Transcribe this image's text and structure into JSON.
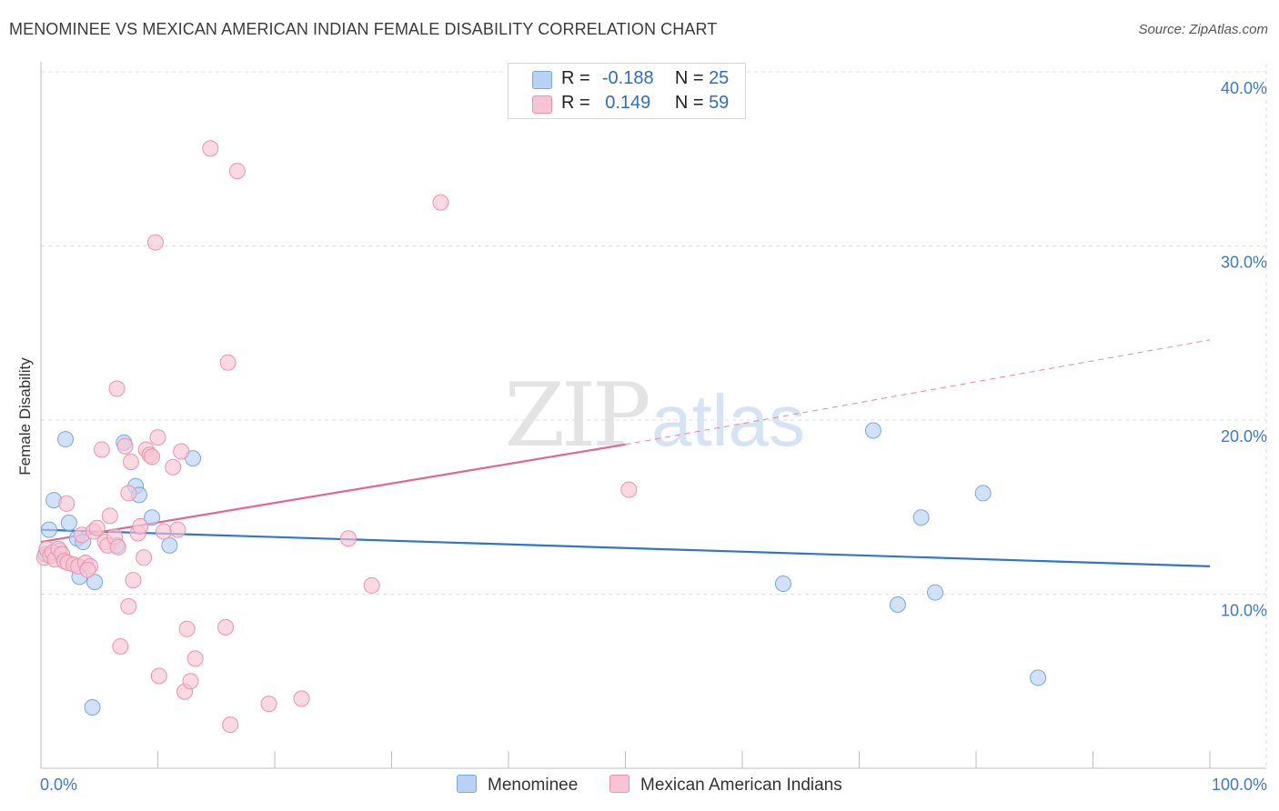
{
  "title": "MENOMINEE VS MEXICAN AMERICAN INDIAN FEMALE DISABILITY CORRELATION CHART",
  "source": "Source: ZipAtlas.com",
  "watermark": {
    "zip": "ZIP",
    "atlas": "atlas"
  },
  "legend": {
    "r_label": "R =",
    "n_label": "N =",
    "rows": [
      {
        "r": "-0.188",
        "n": "25"
      },
      {
        "r": "0.149",
        "n": "59"
      }
    ]
  },
  "colors": {
    "blue_fill": "#b9d1f3",
    "blue_stroke": "#7aa7e0",
    "blue_line": "#2f74d0",
    "pink_fill": "#f8c4d4",
    "pink_stroke": "#e993b0",
    "pink_line": "#e06794",
    "tick_color": "#3d78cc",
    "grid": "#dddddd"
  },
  "chart_data": {
    "type": "scatter",
    "title": "MENOMINEE VS MEXICAN AMERICAN INDIAN FEMALE DISABILITY CORRELATION CHART",
    "xlabel": "",
    "ylabel": "Female Disability",
    "xlim": [
      0,
      100
    ],
    "ylim": [
      0,
      40
    ],
    "x_tick_labels": [
      "0.0%",
      "100.0%"
    ],
    "y_ticks": [
      10,
      20,
      30,
      40
    ],
    "y_tick_labels": [
      "10.0%",
      "20.0%",
      "30.0%",
      "40.0%"
    ],
    "legend_position": "top-center",
    "series": [
      {
        "name": "Menominee",
        "r": -0.188,
        "n": 25,
        "trend": {
          "x": [
            0,
            100
          ],
          "y": [
            13.7,
            11.6
          ],
          "dashed_from": null
        },
        "points": [
          [
            0.7,
            13.7
          ],
          [
            1.1,
            15.4
          ],
          [
            2.1,
            18.9
          ],
          [
            2.4,
            14.1
          ],
          [
            3.1,
            13.2
          ],
          [
            3.3,
            11.0
          ],
          [
            3.6,
            13.0
          ],
          [
            4.6,
            10.7
          ],
          [
            7.1,
            18.7
          ],
          [
            8.1,
            16.2
          ],
          [
            8.4,
            15.7
          ],
          [
            9.5,
            14.4
          ],
          [
            11.0,
            12.8
          ],
          [
            13.0,
            17.8
          ],
          [
            6.5,
            12.8
          ],
          [
            4.4,
            3.5
          ],
          [
            63.5,
            10.6
          ],
          [
            71.2,
            19.4
          ],
          [
            73.3,
            9.4
          ],
          [
            75.3,
            14.4
          ],
          [
            76.5,
            10.1
          ],
          [
            80.6,
            15.8
          ],
          [
            85.3,
            5.2
          ],
          [
            0.4,
            12.3
          ],
          [
            1.6,
            12.5
          ]
        ]
      },
      {
        "name": "Mexican American Indians",
        "r": 0.149,
        "n": 59,
        "trend": {
          "x": [
            0,
            50,
            100
          ],
          "y": [
            13.0,
            18.6,
            24.6
          ],
          "dashed_from": 50
        },
        "points": [
          [
            0.3,
            12.1
          ],
          [
            0.5,
            12.6
          ],
          [
            0.8,
            12.2
          ],
          [
            1.0,
            12.4
          ],
          [
            1.2,
            12.0
          ],
          [
            1.5,
            12.6
          ],
          [
            1.8,
            12.3
          ],
          [
            2.0,
            11.9
          ],
          [
            2.3,
            11.8
          ],
          [
            2.8,
            11.7
          ],
          [
            3.2,
            11.6
          ],
          [
            3.5,
            13.4
          ],
          [
            3.8,
            11.8
          ],
          [
            4.2,
            11.6
          ],
          [
            4.5,
            13.6
          ],
          [
            4.8,
            13.8
          ],
          [
            5.2,
            18.3
          ],
          [
            5.5,
            13.0
          ],
          [
            5.7,
            12.8
          ],
          [
            5.9,
            14.5
          ],
          [
            6.3,
            13.3
          ],
          [
            6.5,
            21.8
          ],
          [
            6.6,
            12.7
          ],
          [
            6.8,
            7.0
          ],
          [
            7.2,
            18.5
          ],
          [
            7.5,
            15.8
          ],
          [
            7.5,
            9.3
          ],
          [
            7.7,
            17.6
          ],
          [
            7.9,
            10.8
          ],
          [
            8.3,
            13.5
          ],
          [
            8.5,
            13.9
          ],
          [
            8.8,
            12.1
          ],
          [
            9.0,
            18.3
          ],
          [
            9.3,
            18.0
          ],
          [
            9.5,
            17.9
          ],
          [
            9.8,
            30.2
          ],
          [
            10.0,
            19.0
          ],
          [
            10.1,
            5.3
          ],
          [
            10.5,
            13.6
          ],
          [
            11.3,
            17.3
          ],
          [
            11.7,
            13.7
          ],
          [
            12.0,
            18.2
          ],
          [
            12.3,
            4.4
          ],
          [
            12.5,
            8.0
          ],
          [
            12.8,
            5.0
          ],
          [
            13.2,
            6.3
          ],
          [
            14.5,
            35.6
          ],
          [
            15.8,
            8.1
          ],
          [
            16.0,
            23.3
          ],
          [
            16.2,
            2.5
          ],
          [
            16.8,
            34.3
          ],
          [
            19.5,
            3.7
          ],
          [
            22.3,
            4.0
          ],
          [
            26.3,
            13.2
          ],
          [
            28.3,
            10.5
          ],
          [
            34.2,
            32.5
          ],
          [
            50.3,
            16.0
          ],
          [
            2.2,
            15.2
          ],
          [
            4.0,
            11.4
          ]
        ]
      }
    ]
  },
  "bottom_legend": [
    "Menominee",
    "Mexican American Indians"
  ]
}
